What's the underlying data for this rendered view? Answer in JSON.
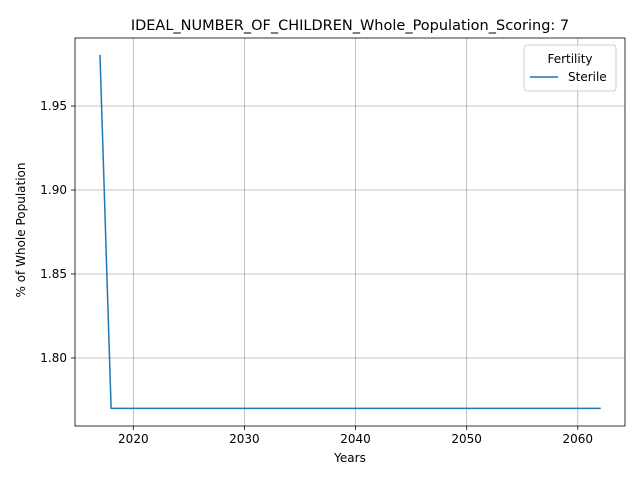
{
  "chart_data": {
    "type": "line",
    "title": "IDEAL_NUMBER_OF_CHILDREN_Whole_Population_Scoring: 7",
    "xlabel": "Years",
    "ylabel": "% of Whole Population",
    "xlim": [
      2014.75,
      2064.25
    ],
    "ylim": [
      1.7595,
      1.9905
    ],
    "x_ticks": [
      2020,
      2030,
      2040,
      2050,
      2060
    ],
    "y_ticks": [
      1.8,
      1.85,
      1.9,
      1.95
    ],
    "x_tick_labels": [
      "2020",
      "2030",
      "2040",
      "2050",
      "2060"
    ],
    "y_tick_labels": [
      "1.80",
      "1.85",
      "1.90",
      "1.95"
    ],
    "grid": true,
    "legend": {
      "title": "Fertility",
      "placement": "top-right"
    },
    "series": [
      {
        "name": "Sterile",
        "color": "#1f77b4",
        "x": [
          2017,
          2018,
          2019,
          2020,
          2021,
          2022,
          2023,
          2024,
          2025,
          2026,
          2027,
          2028,
          2029,
          2030,
          2031,
          2032,
          2033,
          2034,
          2035,
          2036,
          2037,
          2038,
          2039,
          2040,
          2041,
          2042,
          2043,
          2044,
          2045,
          2046,
          2047,
          2048,
          2049,
          2050,
          2051,
          2052,
          2053,
          2054,
          2055,
          2056,
          2057,
          2058,
          2059,
          2060,
          2061,
          2062
        ],
        "y": [
          1.98,
          1.77,
          1.77,
          1.77,
          1.77,
          1.77,
          1.77,
          1.77,
          1.77,
          1.77,
          1.77,
          1.77,
          1.77,
          1.77,
          1.77,
          1.77,
          1.77,
          1.77,
          1.77,
          1.77,
          1.77,
          1.77,
          1.77,
          1.77,
          1.77,
          1.77,
          1.77,
          1.77,
          1.77,
          1.77,
          1.77,
          1.77,
          1.77,
          1.77,
          1.77,
          1.77,
          1.77,
          1.77,
          1.77,
          1.77,
          1.77,
          1.77,
          1.77,
          1.77,
          1.77,
          1.77
        ]
      }
    ]
  }
}
